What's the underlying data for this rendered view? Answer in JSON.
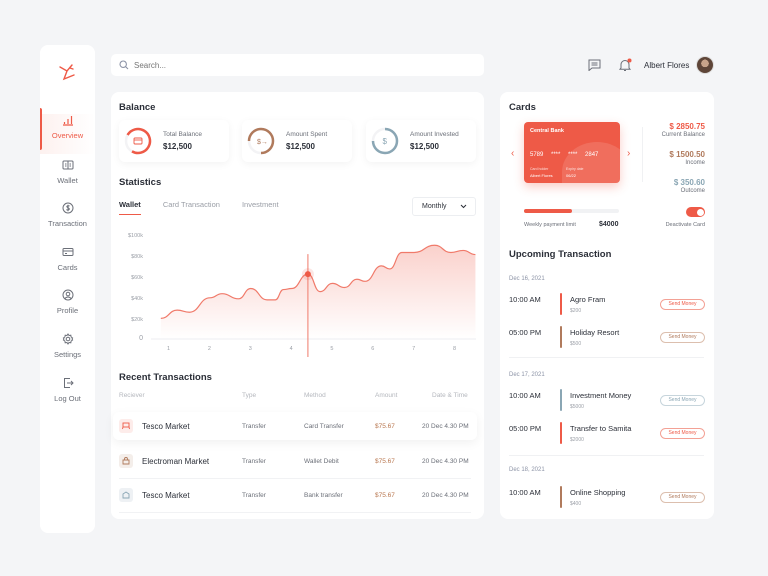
{
  "sidebar": {
    "items": [
      {
        "label": "Overview",
        "icon": "bar-chart-icon",
        "active": true
      },
      {
        "label": "Wallet",
        "icon": "wallet-icon"
      },
      {
        "label": "Transaction",
        "icon": "dollar-circle-icon"
      },
      {
        "label": "Cards",
        "icon": "credit-card-icon"
      },
      {
        "label": "Profile",
        "icon": "user-circle-icon"
      },
      {
        "label": "Settings",
        "icon": "gear-icon"
      },
      {
        "label": "Log Out",
        "icon": "logout-icon"
      }
    ]
  },
  "header": {
    "search_placeholder": "Search...",
    "user_name": "Albert Flores"
  },
  "balance": {
    "title": "Balance",
    "cards": [
      {
        "label": "Total Balance",
        "value": "$12,500",
        "color": "#ee5a47"
      },
      {
        "label": "Amount Spent",
        "value": "$12,500",
        "color": "#b07a5c"
      },
      {
        "label": "Amount Invested",
        "value": "$12,500",
        "color": "#8aa6b4"
      }
    ]
  },
  "statistics": {
    "title": "Statistics",
    "tabs": [
      "Wallet",
      "Card Transaction",
      "Investment"
    ],
    "period": "Monthly"
  },
  "chart_data": {
    "type": "area",
    "title": "Statistics",
    "x": [
      0.8,
      1.2,
      1.5,
      2.0,
      2.3,
      2.7,
      3.0,
      3.4,
      3.6,
      3.8,
      4.0,
      4.4,
      4.7,
      5.0,
      5.3,
      5.6,
      5.8,
      6.2,
      6.4,
      6.7,
      7.0,
      7.5,
      7.9,
      8.2,
      8.5
    ],
    "series": [
      {
        "name": "Wallet",
        "values": [
          20,
          28,
          26,
          40,
          44,
          39,
          49,
          38,
          38,
          48,
          49,
          63,
          46,
          54,
          50,
          58,
          56,
          71,
          68,
          84,
          84,
          91,
          84,
          86,
          82
        ]
      }
    ],
    "yticks": [
      "0",
      "$20k",
      "$40k",
      "$60k",
      "$80k",
      "$100k"
    ],
    "xticks": [
      "1",
      "2",
      "3",
      "4",
      "5",
      "6",
      "7",
      "8"
    ],
    "ylim": [
      0,
      100
    ],
    "highlight": {
      "x": 4.4,
      "y": 63
    },
    "grid": false
  },
  "transactions": {
    "title": "Recent Transactions",
    "columns": [
      "Reciever",
      "Type",
      "Method",
      "Amount",
      "Date & Time"
    ],
    "rows": [
      {
        "receiver": "Tesco Market",
        "type": "Transfer",
        "method": "Card Transfer",
        "amount": "$75.67",
        "date": "20 Dec 4.30 PM"
      },
      {
        "receiver": "Electroman Market",
        "type": "Transfer",
        "method": "Wallet Debit",
        "amount": "$75.67",
        "date": "20 Dec 4.30 PM"
      },
      {
        "receiver": "Tesco Market",
        "type": "Transfer",
        "method": "Bank transfer",
        "amount": "$75.67",
        "date": "20 Dec 4.30 PM"
      }
    ]
  },
  "cards": {
    "title": "Cards",
    "card": {
      "bank": "Central Bank",
      "number": "5789 **** **** 2847",
      "holder_label": "Card holder",
      "holder": "Albert Flores",
      "expiry_label": "Expiry date",
      "expiry": "06/22"
    },
    "current_balance": {
      "value": "$ 2850.75",
      "label": "Current Balance"
    },
    "income": {
      "value": "$ 1500.50",
      "label": "Income"
    },
    "outcome": {
      "value": "$ 350.60",
      "label": "Outcome"
    },
    "limit_label": "Weekly payment limit",
    "limit_value": "$4000",
    "deactivate_label": "Deactivate Card"
  },
  "upcoming": {
    "title": "Upcoming Transaction",
    "button_label": "Send Money",
    "groups": [
      {
        "date": "Dec 16, 2021",
        "items": [
          {
            "time": "10:00 AM",
            "name": "Agro Fram",
            "amount": "$200",
            "color": "#ee5a47"
          },
          {
            "time": "05:00 PM",
            "name": "Holiday Resort",
            "amount": "$500",
            "color": "#b07a5c"
          }
        ]
      },
      {
        "date": "Dec 17, 2021",
        "items": [
          {
            "time": "10:00 AM",
            "name": "Investment Money",
            "amount": "$5000",
            "color": "#8aa6b4"
          },
          {
            "time": "05:00 PM",
            "name": "Transfer to Samita",
            "amount": "$2000",
            "color": "#ee5a47"
          }
        ]
      },
      {
        "date": "Dec 18, 2021",
        "items": [
          {
            "time": "10:00 AM",
            "name": "Online Shopping",
            "amount": "$400",
            "color": "#b07a5c"
          }
        ]
      }
    ]
  }
}
